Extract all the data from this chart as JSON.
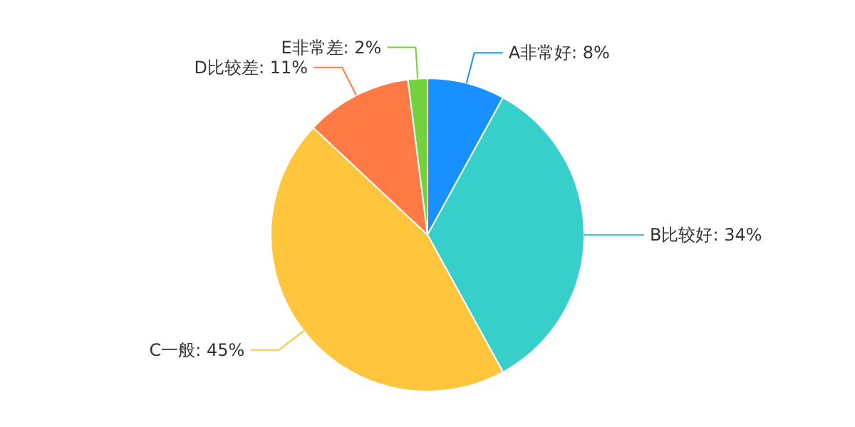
{
  "chart_data": {
    "type": "pie",
    "categories": [
      "A非常好",
      "B比较好",
      "C一般",
      "D比较差",
      "E非常差"
    ],
    "values": [
      8,
      34,
      45,
      11,
      2
    ],
    "value_labels": [
      "8%",
      "34%",
      "45%",
      "11%",
      "2%"
    ],
    "colors": [
      "#1890ff",
      "#36cfc9",
      "#ffc53d",
      "#ff7a45",
      "#73d13d"
    ]
  }
}
